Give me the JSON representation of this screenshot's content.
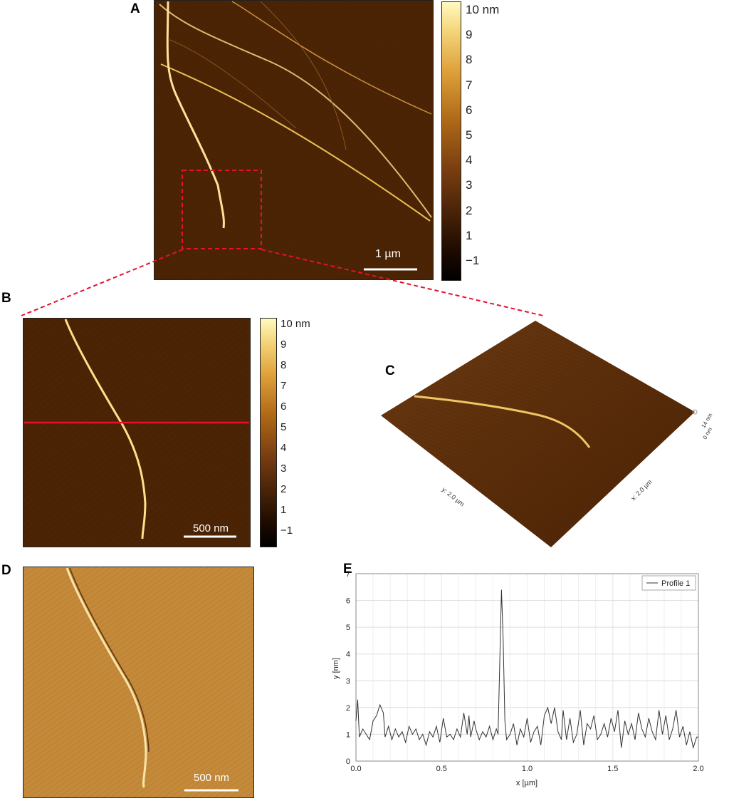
{
  "panels": {
    "a": {
      "letter": "A",
      "scalebar": "1 µm"
    },
    "b": {
      "letter": "B",
      "scalebar": "500 nm"
    },
    "c": {
      "letter": "C",
      "x_axis": "x: 2.0 µm",
      "y_axis": "y: 2.0 µm",
      "z_top": "14 nm",
      "z_bottom": "0 nm"
    },
    "d": {
      "letter": "D",
      "scalebar": "500 nm"
    },
    "e": {
      "letter": "E"
    }
  },
  "colorbar_a": {
    "ticks": [
      "10 nm",
      "9",
      "8",
      "7",
      "6",
      "5",
      "4",
      "3",
      "2",
      "1",
      "−1"
    ]
  },
  "colorbar_b": {
    "ticks": [
      "10 nm",
      "9",
      "8",
      "7",
      "6",
      "5",
      "4",
      "3",
      "2",
      "1",
      "−1"
    ]
  },
  "colors": {
    "cross_section_line": "#e8112d",
    "zoom_box": "#e8112d",
    "profile_line": "#333333"
  },
  "chart_data": {
    "type": "line",
    "title": "",
    "xlabel": "x [µm]",
    "ylabel": "y [nm]",
    "xlim": [
      0,
      2.0
    ],
    "ylim": [
      0,
      7
    ],
    "xticks": [
      "0.0",
      "0.5",
      "1.0",
      "1.5",
      "2.0"
    ],
    "yticks": [
      "0",
      "1",
      "2",
      "3",
      "4",
      "5",
      "6",
      "7"
    ],
    "grid": true,
    "legend": "top-right",
    "series": [
      {
        "name": "Profile 1",
        "x": [
          0.0,
          0.01,
          0.02,
          0.04,
          0.06,
          0.08,
          0.1,
          0.12,
          0.14,
          0.16,
          0.17,
          0.19,
          0.21,
          0.23,
          0.25,
          0.27,
          0.29,
          0.31,
          0.33,
          0.35,
          0.37,
          0.39,
          0.41,
          0.43,
          0.45,
          0.47,
          0.49,
          0.51,
          0.53,
          0.55,
          0.57,
          0.59,
          0.61,
          0.63,
          0.65,
          0.66,
          0.67,
          0.69,
          0.7,
          0.72,
          0.74,
          0.76,
          0.78,
          0.8,
          0.82,
          0.83,
          0.85,
          0.86,
          0.87,
          0.88,
          0.9,
          0.92,
          0.94,
          0.96,
          0.98,
          1.0,
          1.02,
          1.04,
          1.06,
          1.08,
          1.1,
          1.12,
          1.14,
          1.16,
          1.18,
          1.2,
          1.21,
          1.23,
          1.25,
          1.27,
          1.29,
          1.31,
          1.33,
          1.35,
          1.37,
          1.39,
          1.41,
          1.43,
          1.45,
          1.47,
          1.49,
          1.51,
          1.53,
          1.55,
          1.57,
          1.59,
          1.61,
          1.63,
          1.65,
          1.67,
          1.69,
          1.71,
          1.73,
          1.75,
          1.77,
          1.79,
          1.81,
          1.83,
          1.85,
          1.87,
          1.89,
          1.91,
          1.93,
          1.95,
          1.97,
          1.99,
          2.0
        ],
        "values": [
          1.5,
          2.3,
          0.9,
          1.2,
          1.0,
          0.8,
          1.5,
          1.7,
          2.1,
          1.8,
          0.9,
          1.3,
          0.8,
          1.2,
          0.9,
          1.1,
          0.7,
          1.3,
          1.0,
          1.2,
          0.8,
          1.0,
          0.6,
          1.1,
          0.9,
          1.3,
          0.7,
          1.6,
          0.9,
          1.0,
          0.8,
          1.2,
          0.9,
          1.8,
          1.0,
          1.7,
          0.9,
          1.5,
          1.2,
          0.8,
          1.1,
          0.9,
          1.3,
          0.8,
          1.2,
          1.0,
          6.4,
          4.5,
          1.5,
          0.8,
          1.0,
          1.4,
          0.6,
          1.2,
          0.9,
          1.6,
          0.7,
          1.1,
          1.3,
          0.6,
          1.7,
          2.0,
          1.4,
          2.0,
          1.1,
          0.8,
          1.9,
          0.8,
          1.6,
          0.7,
          1.0,
          1.9,
          0.6,
          1.4,
          1.2,
          1.7,
          0.8,
          1.0,
          1.4,
          0.9,
          1.6,
          1.1,
          1.9,
          0.5,
          1.5,
          1.0,
          1.4,
          0.8,
          1.8,
          1.2,
          0.9,
          1.6,
          1.1,
          0.8,
          1.9,
          1.0,
          1.7,
          0.8,
          1.2,
          1.9,
          0.9,
          1.3,
          0.6,
          1.1,
          0.5,
          0.9,
          0.9
        ]
      }
    ]
  }
}
